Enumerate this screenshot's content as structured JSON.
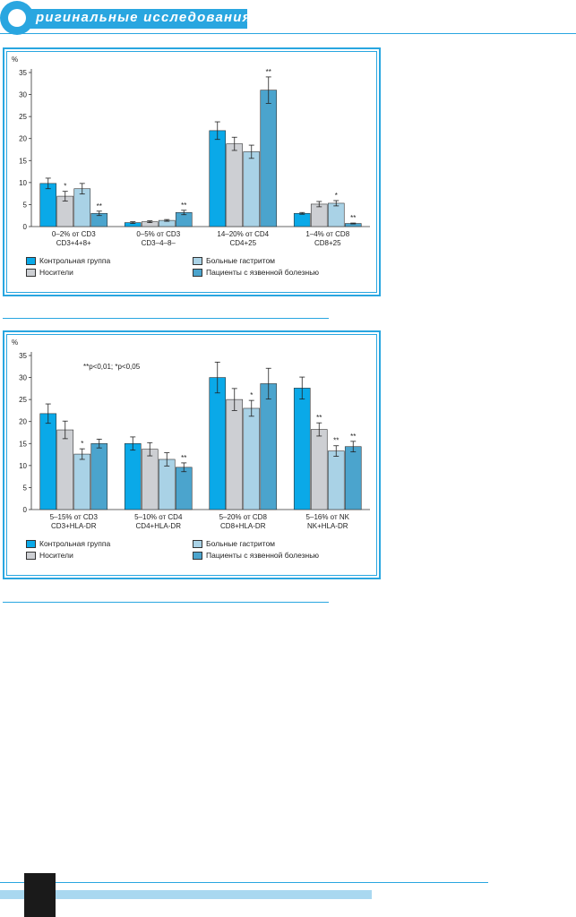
{
  "header": {
    "logo_letter": "О",
    "title": "ригинальные исследования"
  },
  "colors": {
    "blue": "#0aa9e8",
    "gray": "#cdcfd3",
    "lightblue": "#a9d2e6",
    "steel": "#4ba4cd",
    "frame": "#29a6e0"
  },
  "legend": [
    "Контрольная группа",
    "Носители",
    "Больные гастритом",
    "Пациенты с язвенной болезнью"
  ],
  "chart_data": [
    {
      "type": "bar",
      "ylabel": "%",
      "ylim": [
        0,
        35
      ],
      "yticks": [
        0,
        5,
        10,
        15,
        20,
        25,
        30,
        35
      ],
      "categories": [
        [
          "0–2% от CD3",
          "CD3+4+8+"
        ],
        [
          "0–5% от CD3",
          "CD3–4–8–"
        ],
        [
          "14–20% от CD4",
          "CD4+25"
        ],
        [
          "1–4% от CD8",
          "CD8+25"
        ]
      ],
      "series": [
        {
          "name": "Контрольная группа",
          "values": [
            9.8,
            0.9,
            21.8,
            3.0
          ],
          "errors": [
            1.2,
            0.2,
            2.0,
            0.2
          ],
          "sig": [
            "",
            "",
            "",
            ""
          ]
        },
        {
          "name": "Носители",
          "values": [
            6.9,
            1.1,
            18.8,
            5.1
          ],
          "errors": [
            1.1,
            0.2,
            1.5,
            0.6
          ],
          "sig": [
            "*",
            "",
            "",
            ""
          ]
        },
        {
          "name": "Больные гастритом",
          "values": [
            8.6,
            1.4,
            17.0,
            5.3
          ],
          "errors": [
            1.2,
            0.2,
            1.5,
            0.6
          ],
          "sig": [
            "",
            "",
            "",
            "*"
          ]
        },
        {
          "name": "Пациенты с язвенной болезнью",
          "values": [
            3.0,
            3.2,
            31.0,
            0.7
          ],
          "errors": [
            0.5,
            0.5,
            3.0,
            0.1
          ],
          "sig": [
            "**",
            "**",
            "**",
            "**"
          ]
        }
      ]
    },
    {
      "type": "bar",
      "ylabel": "%",
      "ylim": [
        0,
        35
      ],
      "yticks": [
        0,
        5,
        10,
        15,
        20,
        25,
        30,
        35
      ],
      "note": "**p<0,01; *p<0,05",
      "categories": [
        [
          "5–15% от CD3",
          "CD3+HLA-DR"
        ],
        [
          "5–10% от CD4",
          "CD4+HLA-DR"
        ],
        [
          "5–20% от CD8",
          "CD8+HLA-DR"
        ],
        [
          "5–16% от NK",
          "NK+HLA-DR"
        ]
      ],
      "series": [
        {
          "name": "Контрольная группа",
          "values": [
            21.8,
            15.0,
            30.0,
            27.6
          ],
          "errors": [
            2.2,
            1.5,
            3.5,
            2.5
          ],
          "sig": [
            "",
            "",
            "",
            ""
          ]
        },
        {
          "name": "Носители",
          "values": [
            18.1,
            13.7,
            25.0,
            18.2
          ],
          "errors": [
            2.0,
            1.5,
            2.5,
            1.5
          ],
          "sig": [
            "",
            "",
            "",
            "**"
          ]
        },
        {
          "name": "Больные гастритом",
          "values": [
            12.6,
            11.4,
            23.0,
            13.3
          ],
          "errors": [
            1.2,
            1.5,
            1.8,
            1.2
          ],
          "sig": [
            "*",
            "",
            "*",
            "**"
          ]
        },
        {
          "name": "Пациенты с язвенной болезнью",
          "values": [
            15.0,
            9.6,
            28.6,
            14.3
          ],
          "errors": [
            1.0,
            1.0,
            3.5,
            1.2
          ],
          "sig": [
            "",
            "**",
            "",
            "**"
          ]
        }
      ]
    }
  ]
}
